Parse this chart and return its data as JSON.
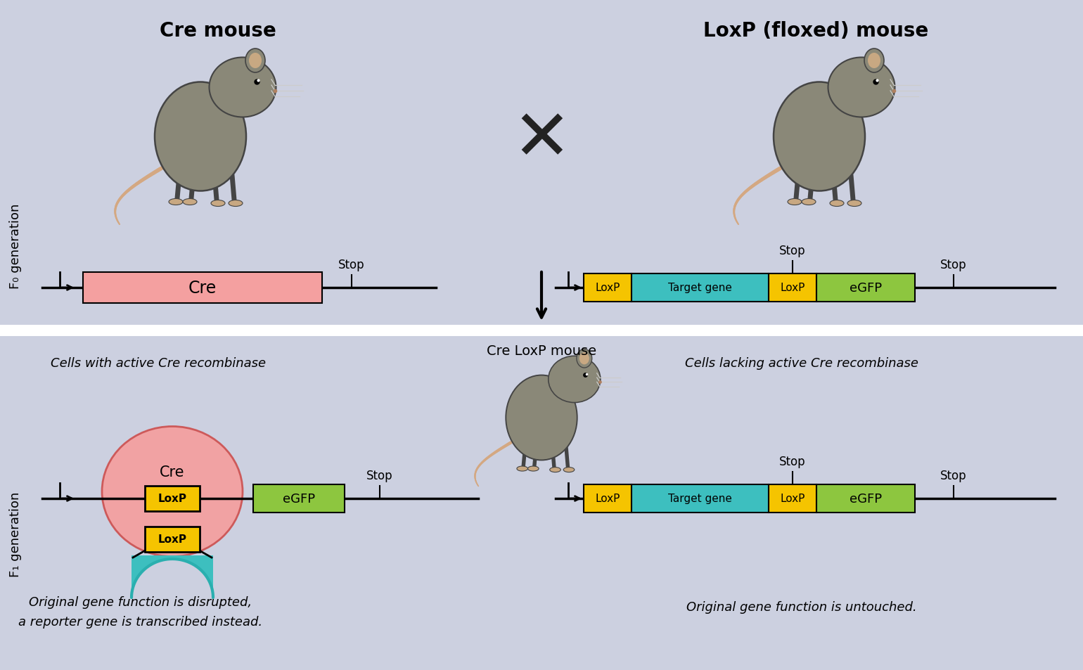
{
  "bg_color": "#ccd0e0",
  "divider_color": "#ffffff",
  "title_cre_mouse": "Cre mouse",
  "title_loxp_mouse": "LoxP (floxed) mouse",
  "cre_loxp_mouse_label": "Cre LoxP mouse",
  "f0_label": "F₀ generation",
  "f1_label": "F₁ generation",
  "cells_active": "Cells with active Cre recombinase",
  "cells_lacking": "Cells lacking active Cre recombinase",
  "disrupted_text1": "Original gene function is disrupted,",
  "disrupted_text2": "a reporter gene is transcribed instead.",
  "untouched_text": "Original gene function is untouched.",
  "cre_box_color": "#f4a0a0",
  "loxp_color": "#f5c400",
  "target_gene_color": "#3dbfbf",
  "egfp_color": "#8dc63f",
  "teal_loop_color": "#3dbfbf",
  "mouse_body": "#8a8878",
  "mouse_outline": "#444444",
  "mouse_ear": "#c8a882",
  "mouse_tail": "#d4a882",
  "mouse_belly": "#b8a888"
}
